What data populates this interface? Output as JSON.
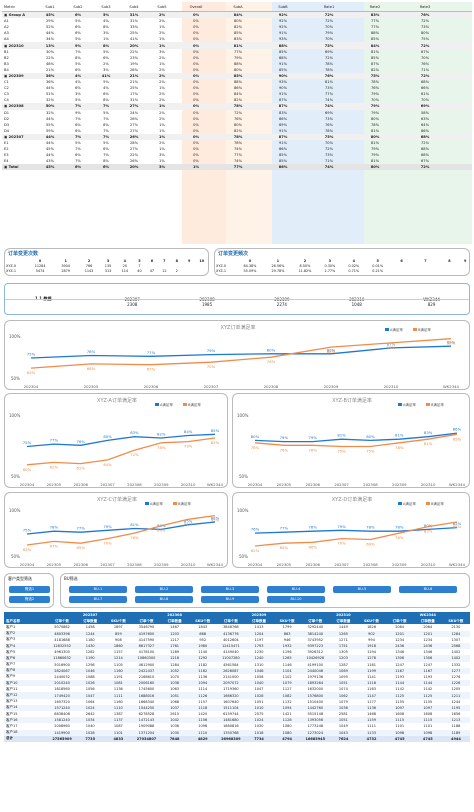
{
  "top_table": {
    "headers": [
      "Metric",
      "Sub1",
      "Sub2",
      "Sub3",
      "Sub4",
      "Sub5",
      "Overall",
      "SubA",
      "SubB",
      "Rate1",
      "Rate2",
      "Rate3",
      "Rate4"
    ],
    "rows": [
      {
        "label": "Group A",
        "vals": [
          "45%",
          "6%",
          "5%",
          "31%",
          "2%",
          "0%",
          "84%",
          "92%",
          "72%",
          "83%",
          "76%",
          "89%"
        ],
        "g": true
      },
      {
        "label": "A1",
        "vals": [
          "29%",
          "5%",
          "4%",
          "31%",
          "2%",
          "0%",
          "80%",
          "92%",
          "72%",
          "77%",
          "72%",
          "87%"
        ]
      },
      {
        "label": "A2",
        "vals": [
          "52%",
          "6%",
          "8%",
          "33%",
          "1%",
          "0%",
          "82%",
          "92%",
          "70%",
          "77%",
          "73%",
          "86%"
        ]
      },
      {
        "label": "A3",
        "vals": [
          "44%",
          "6%",
          "3%",
          "25%",
          "2%",
          "0%",
          "85%",
          "91%",
          "79%",
          "88%",
          "80%",
          "92%"
        ]
      },
      {
        "label": "A4",
        "vals": [
          "34%",
          "5%",
          "1%",
          "41%",
          "1%",
          "0%",
          "83%",
          "93%",
          "70%",
          "85%",
          "75%",
          "90%"
        ]
      },
      {
        "label": "202310",
        "vals": [
          "13%",
          "9%",
          "8%",
          "20%",
          "1%",
          "0%",
          "81%",
          "88%",
          "75%",
          "84%",
          "72%",
          "80%"
        ],
        "g": true
      },
      {
        "label": "B1",
        "vals": [
          "30%",
          "7%",
          "5%",
          "22%",
          "3%",
          "0%",
          "77%",
          "85%",
          "69%",
          "81%",
          "67%",
          "86%"
        ]
      },
      {
        "label": "B2",
        "vals": [
          "22%",
          "8%",
          "6%",
          "23%",
          "2%",
          "0%",
          "79%",
          "88%",
          "72%",
          "85%",
          "70%",
          "91%"
        ]
      },
      {
        "label": "B3",
        "vals": [
          "48%",
          "5%",
          "2%",
          "19%",
          "1%",
          "0%",
          "88%",
          "91%",
          "78%",
          "87%",
          "76%",
          "94%"
        ]
      },
      {
        "label": "B4",
        "vals": [
          "21%",
          "6%",
          "3%",
          "28%",
          "2%",
          "0%",
          "80%",
          "85%",
          "78%",
          "82%",
          "71%",
          "86%"
        ]
      },
      {
        "label": "202309",
        "vals": [
          "36%",
          "4%",
          "41%",
          "21%",
          "2%",
          "0%",
          "85%",
          "90%",
          "76%",
          "75%",
          "72%",
          "93%"
        ],
        "g": true
      },
      {
        "label": "C1",
        "vals": [
          "36%",
          "4%",
          "5%",
          "21%",
          "2%",
          "0%",
          "88%",
          "93%",
          "81%",
          "78%",
          "68%",
          "91%"
        ]
      },
      {
        "label": "C2",
        "vals": [
          "44%",
          "6%",
          "4%",
          "25%",
          "1%",
          "0%",
          "86%",
          "90%",
          "73%",
          "76%",
          "66%",
          "89%"
        ]
      },
      {
        "label": "C3",
        "vals": [
          "51%",
          "3%",
          "6%",
          "17%",
          "2%",
          "0%",
          "84%",
          "91%",
          "77%",
          "79%",
          "61%",
          "94%"
        ]
      },
      {
        "label": "C4",
        "vals": [
          "32%",
          "5%",
          "8%",
          "31%",
          "2%",
          "0%",
          "82%",
          "87%",
          "74%",
          "70%",
          "70%",
          "90%"
        ]
      },
      {
        "label": "202308",
        "vals": [
          "50%",
          "7%",
          "7%",
          "27%",
          "1%",
          "0%",
          "78%",
          "87%",
          "74%",
          "79%",
          "69%",
          "84%"
        ],
        "g": true
      },
      {
        "label": "D1",
        "vals": [
          "32%",
          "9%",
          "5%",
          "24%",
          "2%",
          "0%",
          "72%",
          "83%",
          "69%",
          "79%",
          "58%",
          "80%"
        ]
      },
      {
        "label": "D2",
        "vals": [
          "44%",
          "7%",
          "7%",
          "26%",
          "2%",
          "0%",
          "76%",
          "86%",
          "73%",
          "80%",
          "63%",
          "85%"
        ]
      },
      {
        "label": "D3",
        "vals": [
          "55%",
          "6%",
          "8%",
          "27%",
          "1%",
          "0%",
          "80%",
          "89%",
          "76%",
          "78%",
          "64%",
          "86%"
        ]
      },
      {
        "label": "D4",
        "vals": [
          "59%",
          "6%",
          "7%",
          "27%",
          "1%",
          "0%",
          "82%",
          "91%",
          "78%",
          "81%",
          "66%",
          "86%"
        ]
      },
      {
        "label": "202307",
        "vals": [
          "44%",
          "7%",
          "7%",
          "26%",
          "1%",
          "0%",
          "78%",
          "87%",
          "75%",
          "80%",
          "68%",
          "82%"
        ],
        "g": true
      },
      {
        "label": "E1",
        "vals": [
          "44%",
          "5%",
          "5%",
          "28%",
          "2%",
          "0%",
          "78%",
          "91%",
          "70%",
          "81%",
          "72%",
          "81%"
        ]
      },
      {
        "label": "E2",
        "vals": [
          "45%",
          "7%",
          "6%",
          "27%",
          "1%",
          "0%",
          "74%",
          "86%",
          "72%",
          "79%",
          "68%",
          "76%"
        ]
      },
      {
        "label": "E3",
        "vals": [
          "44%",
          "6%",
          "7%",
          "22%",
          "3%",
          "0%",
          "77%",
          "85%",
          "73%",
          "79%",
          "68%",
          "77%"
        ]
      },
      {
        "label": "E4",
        "vals": [
          "43%",
          "7%",
          "8%",
          "26%",
          "1%",
          "0%",
          "74%",
          "85%",
          "71%",
          "81%",
          "67%",
          "79%"
        ]
      },
      {
        "label": "Total",
        "vals": [
          "45%",
          "6%",
          "6%",
          "20%",
          "3%",
          "1%",
          "77%",
          "86%",
          "74%",
          "80%",
          "72%",
          "88%"
        ],
        "t": true
      }
    ]
  },
  "orders_changes": {
    "title": "订单变更次数",
    "header": [
      "",
      "0",
      "1",
      "2",
      "3",
      "4",
      "5",
      "6",
      "7",
      "8",
      "9",
      "10"
    ],
    "rows": [
      [
        "XYZ-0",
        "11284",
        "3904",
        "766",
        "135",
        "20",
        "7",
        "",
        "",
        "",
        "",
        ""
      ],
      [
        "XYZ-1",
        "5474",
        "2879",
        "1143",
        "313",
        "114",
        "40",
        "47",
        "12",
        "2",
        "",
        ""
      ],
      [
        "XYZ-2",
        "2883",
        "1431",
        "340",
        "123",
        "42",
        "19",
        "47",
        "12",
        "6",
        "",
        ""
      ],
      [
        "XYZ-3",
        "6203",
        "1598",
        "247",
        "51",
        "8",
        "6",
        "19",
        "14",
        "6",
        "",
        ""
      ]
    ],
    "total": [
      "总计",
      "37848",
      "11957",
      "2441",
      "715",
      "132",
      "71",
      "78",
      "35",
      "31",
      "27",
      ""
    ]
  },
  "orders_freq": {
    "title": "订单变更频次",
    "header": [
      "",
      "0",
      "1",
      "2",
      "3",
      "4",
      "5",
      "6",
      "7",
      "8",
      "9"
    ],
    "rows": [
      [
        "XYZ-0",
        "64.38%",
        "26.56%",
        "8.50%",
        "0.30%",
        "0.02%",
        "0.01%",
        "",
        "",
        "",
        ""
      ],
      [
        "XYZ-1",
        "55.09%",
        "29.78%",
        "11.82%",
        "2.77%",
        "0.71%",
        "0.21%",
        "",
        "",
        "",
        ""
      ],
      [
        "XYZ-2",
        "62.98%",
        "25.98%",
        "8.39%",
        "2.56%",
        "0.35%",
        "0.13%",
        "0.24%",
        "",
        "",
        ""
      ],
      [
        "XYZ-3",
        "78.40%",
        "18.55%",
        "2.25%",
        "0.63%",
        "0.02%",
        "0.06%",
        "0.07%",
        "",
        "",
        ""
      ]
    ],
    "total": [
      "总计",
      "64.35%",
      "24.13%",
      "8.30%",
      "1.50%",
      "0.33%",
      "0.13%",
      "0.05%",
      "0.05%",
      "0.05%",
      ""
    ]
  },
  "kpi": {
    "label": "1.1 数据",
    "cols": [
      "202307",
      "202308",
      "202309",
      "202310",
      "WK2344"
    ],
    "vals": [
      "2308",
      "1985",
      "2274",
      "1048",
      "829"
    ]
  },
  "chart_main": {
    "title": "XYZ订单满足率",
    "legend": [
      "A满足率",
      "B满足率"
    ],
    "x": [
      "202304",
      "202305",
      "202306",
      "202307",
      "202308",
      "202309",
      "202310",
      "WK2344"
    ]
  },
  "chart_data": [
    {
      "type": "line",
      "title": "",
      "x": [
        "202304",
        "202305",
        "202306",
        "202307",
        "202308",
        "202309",
        "202310",
        "WK2344"
      ],
      "series": [
        {
          "name": "A满足率",
          "values": [
            75,
            78,
            77,
            79,
            80,
            80,
            87,
            89
          ]
        },
        {
          "name": "B满足率",
          "values": [
            63,
            68,
            67,
            70,
            76,
            88,
            93,
            98
          ]
        }
      ],
      "ylim": [
        50,
        100
      ]
    },
    {
      "type": "line",
      "title": "",
      "x": [
        "202304",
        "202305",
        "202306",
        "202307",
        "202308",
        "202309",
        "202310",
        "WK2344"
      ],
      "series": [
        {
          "name": "A满足率",
          "values": [
            75,
            77,
            76,
            80,
            83,
            82,
            84,
            85
          ]
        },
        {
          "name": "B满足率",
          "values": [
            60,
            62,
            61,
            64,
            72,
            78,
            79,
            82
          ]
        }
      ],
      "ylim": [
        50,
        100
      ]
    },
    {
      "type": "line",
      "title": "",
      "x": [
        "202304",
        "202305",
        "202306",
        "202307",
        "202308",
        "202309",
        "202310",
        "WK2344"
      ],
      "series": [
        {
          "name": "A满足率",
          "values": [
            80,
            79,
            79,
            81,
            80,
            81,
            83,
            86
          ]
        },
        {
          "name": "B满足率",
          "values": [
            78,
            76,
            76,
            75,
            75,
            78,
            81,
            85
          ]
        }
      ],
      "ylim": [
        50,
        100
      ]
    },
    {
      "type": "line",
      "title": "",
      "x": [
        "202304",
        "202305",
        "202306",
        "202307",
        "202308",
        "202309",
        "202310",
        "WK2344"
      ],
      "series": [
        {
          "name": "A满足率",
          "values": [
            75,
            78,
            77,
            79,
            81,
            80,
            85,
            88
          ]
        },
        {
          "name": "B满足率",
          "values": [
            63,
            67,
            65,
            70,
            76,
            84,
            91,
            95
          ]
        }
      ],
      "ylim": [
        50,
        100
      ]
    },
    {
      "type": "line",
      "title": "",
      "x": [
        "202304",
        "202305",
        "202306",
        "202307",
        "202308",
        "202309",
        "202310",
        "WK2344"
      ],
      "series": [
        {
          "name": "A满足率",
          "values": [
            76,
            77,
            78,
            79,
            78,
            78,
            80,
            82
          ]
        },
        {
          "name": "B满足率",
          "values": [
            62,
            65,
            66,
            70,
            69,
            76,
            83,
            88
          ]
        }
      ],
      "ylim": [
        50,
        100
      ]
    }
  ],
  "filters": {
    "left_title": "客户类型筛选",
    "left_btns": [
      "筛选1",
      "筛选2"
    ],
    "right_title": "BU筛选",
    "right_btns": [
      "BU-1",
      "BU-2",
      "BU-3",
      "BU-4",
      "BU-5",
      "BU-6",
      "BU-7",
      "BU-8",
      "BU-9",
      "BU-10"
    ]
  },
  "bottom_table": {
    "group_headers": [
      "202307",
      "202308",
      "202309",
      "202310",
      "WK2344"
    ],
    "col_headers": [
      "客户名称",
      "订单个数",
      "订单数量",
      "SKU个数",
      "订单个数",
      "订单数量",
      "SKU个数",
      "订单个数",
      "订单数量",
      "SKU个数",
      "订单个数",
      "订单数量",
      "SKU个数",
      "订单个数",
      "订单数量",
      "SKU个数"
    ],
    "rows": [
      [
        "客户1",
        "5070862",
        "1458",
        "1897",
        "3546790",
        "1467",
        "1843",
        "3846768",
        "1413",
        "1799",
        "3292440",
        "1449",
        "1826",
        "2064",
        "2064",
        "2130"
      ],
      [
        "客户2",
        "4803396",
        "1244",
        "859",
        "4197600",
        "1203",
        "868",
        "4136776",
        "1204",
        "863",
        "3814240",
        "1265",
        "902",
        "1201",
        "1201",
        "1284"
      ],
      [
        "客户3",
        "4181688",
        "1180",
        "908",
        "4147590",
        "1217",
        "952",
        "4012604",
        "1197",
        "946",
        "3743952",
        "1271",
        "994",
        "1234",
        "1234",
        "1307"
      ],
      [
        "客户4",
        "12832552",
        "1430",
        "1860",
        "8617327",
        "1761",
        "1980",
        "12415471",
        "1793",
        "1932",
        "9397223",
        "1751",
        "1918",
        "2436",
        "2436",
        "2568"
      ],
      [
        "客户5",
        "4961300",
        "1282",
        "1157",
        "4178100",
        "1289",
        "1140",
        "4149040",
        "1230",
        "1196",
        "3926312",
        "1305",
        "1194",
        "1346",
        "1346",
        "1402"
      ],
      [
        "客户6",
        "11860632",
        "1190",
        "1214",
        "10860300",
        "1218",
        "1292",
        "11007280",
        "1240",
        "1265",
        "10426928",
        "1203",
        "1278",
        "1306",
        "1306",
        "1402"
      ],
      [
        "客户7",
        "5016900",
        "1298",
        "1105",
        "4612900",
        "1284",
        "1182",
        "4561584",
        "1310",
        "1146",
        "4199100",
        "1287",
        "1181",
        "1247",
        "1247",
        "1332"
      ],
      [
        "客户8",
        "2824067",
        "1046",
        "1160",
        "2422437",
        "1052",
        "1162",
        "2626087",
        "1048",
        "1104",
        "2440046",
        "1069",
        "1199",
        "1167",
        "1167",
        "1277"
      ],
      [
        "客户9",
        "2440032",
        "1088",
        "1191",
        "2168610",
        "1070",
        "1136",
        "2141000",
        "1058",
        "1102",
        "1979136",
        "1095",
        "1141",
        "1193",
        "1193",
        "1276"
      ],
      [
        "客户10",
        "2010240",
        "1026",
        "1081",
        "2006160",
        "1038",
        "1094",
        "2097072",
        "1040",
        "1079",
        "1893264",
        "1051",
        "1118",
        "1144",
        "1144",
        "1226"
      ],
      [
        "客户11",
        "1818560",
        "1056",
        "1136",
        "1745600",
        "1063",
        "1114",
        "1719360",
        "1047",
        "1127",
        "1632000",
        "1074",
        "1163",
        "1142",
        "1142",
        "1205"
      ],
      [
        "客户12",
        "1749420",
        "1047",
        "1111",
        "1688016",
        "1051",
        "1126",
        "1666320",
        "1028",
        "1082",
        "1576800",
        "1062",
        "1147",
        "1125",
        "1125",
        "1211"
      ],
      [
        "客户13",
        "1657320",
        "1064",
        "1160",
        "1668340",
        "1068",
        "1157",
        "1607640",
        "1051",
        "1132",
        "1510400",
        "1079",
        "1177",
        "1155",
        "1155",
        "1244"
      ],
      [
        "客户14",
        "1571240",
        "1024",
        "1110",
        "1544250",
        "1037",
        "1118",
        "1511104",
        "1010",
        "1094",
        "1442760",
        "1036",
        "1136",
        "1097",
        "1097",
        "1195"
      ],
      [
        "客户15",
        "6838408",
        "2642",
        "1387",
        "6278528",
        "2615",
        "1420",
        "6159744",
        "2575",
        "1421",
        "5515148",
        "2581",
        "1468",
        "1608",
        "1608",
        "1656"
      ],
      [
        "客户16",
        "1581240",
        "1034",
        "1137",
        "1472143",
        "1042",
        "1156",
        "1481680",
        "1024",
        "1128",
        "1393056",
        "1051",
        "1159",
        "1115",
        "1115",
        "1213"
      ],
      [
        "客户17",
        "2008960",
        "1040",
        "1087",
        "1909088",
        "1036",
        "1096",
        "1880816",
        "1030",
        "1080",
        "1773248",
        "1049",
        "1111",
        "1101",
        "1101",
        "1188"
      ],
      [
        "客户18",
        "1419900",
        "1028",
        "1101",
        "1371204",
        "1030",
        "1110",
        "1350768",
        "1018",
        "1080",
        "1273024",
        "1043",
        "1133",
        "1098",
        "1098",
        "1189"
      ]
    ],
    "total": [
      "总计",
      "27565909",
      "7735",
      "4833",
      "27034807",
      "7848",
      "4829",
      "26968309",
      "7734",
      "4794",
      "16685945",
      "7624",
      "4732",
      "4745",
      "4745",
      "4944"
    ]
  }
}
